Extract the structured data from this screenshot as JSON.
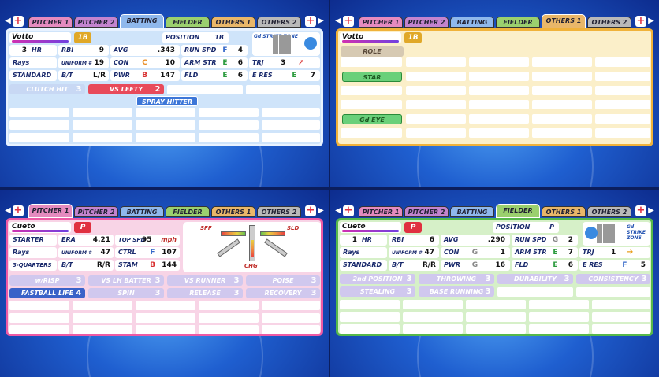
{
  "tabs": [
    "PITCHER 1",
    "PITCHER 2",
    "BATTING",
    "FIELDER",
    "OTHERS 1",
    "OTHERS 2"
  ],
  "batting": {
    "name": "Votto",
    "pos_badge": "1B",
    "position_label": "POSITION",
    "position_value": "1B",
    "hr_value": "3",
    "hr_label": "HR",
    "rbi_label": "RBI",
    "rbi_value": "9",
    "avg_label": "AVG",
    "avg_value": ".343",
    "runspd_label": "RUN SPD",
    "runspd_grade": "F",
    "runspd_value": "4",
    "team": "Rays",
    "uniform_label": "UNIFORM #",
    "uniform_value": "19",
    "con_label": "CON",
    "con_grade": "C",
    "con_value": "10",
    "armstr_label": "ARM STR",
    "armstr_grade": "E",
    "armstr_value": "6",
    "trj_label": "TRJ",
    "trj_value": "3",
    "stance": "STANDARD",
    "bt_label": "B/T",
    "bt_value": "L/R",
    "pwr_label": "PWR",
    "pwr_grade": "B",
    "pwr_value": "147",
    "fld_label": "FLD",
    "fld_grade": "E",
    "fld_value": "6",
    "eres_label": "E RES",
    "eres_grade": "E",
    "eres_value": "7",
    "zone_label": "Gd STRIKE ZONE",
    "skills": [
      {
        "label": "CLUTCH HIT",
        "level": "3"
      },
      {
        "label": "VS LEFTY",
        "level": "2"
      },
      {
        "label": "SPRAY HITTER",
        "level": ""
      }
    ]
  },
  "others1": {
    "name": "Votto",
    "pos_badge": "1B",
    "role_label": "ROLE",
    "abilities": [
      "STAR",
      "Gd EYE"
    ]
  },
  "pitcher1": {
    "name": "Cueto",
    "pos_badge": "P",
    "role": "STARTER",
    "era_label": "ERA",
    "era_value": "4.21",
    "topspd_label": "TOP SPD",
    "topspd_value": "95",
    "topspd_unit": "mph",
    "team": "Rays",
    "uniform_label": "UNIFORM #",
    "uniform_value": "47",
    "ctrl_label": "CTRL",
    "ctrl_grade": "F",
    "ctrl_value": "107",
    "arm_slot": "3-QUARTERS",
    "bt_label": "B/T",
    "bt_value": "R/R",
    "stam_label": "STAM",
    "stam_grade": "B",
    "stam_value": "144",
    "pitches": {
      "top_left": "SFF",
      "top_right": "SLD",
      "bottom": "CHG"
    },
    "skills": [
      {
        "label": "w/RISP",
        "level": "3"
      },
      {
        "label": "VS LH BATTER",
        "level": "3"
      },
      {
        "label": "VS RUNNER",
        "level": "3"
      },
      {
        "label": "POISE",
        "level": "3"
      },
      {
        "label": "FASTBALL LIFE",
        "level": "4"
      },
      {
        "label": "SPIN",
        "level": "3"
      },
      {
        "label": "RELEASE",
        "level": "3"
      },
      {
        "label": "RECOVERY",
        "level": "3"
      }
    ]
  },
  "fielder": {
    "name": "Cueto",
    "pos_badge": "P",
    "position_label": "POSITION",
    "position_value": "P",
    "hr_value": "1",
    "hr_label": "HR",
    "rbi_label": "RBI",
    "rbi_value": "6",
    "avg_label": "AVG",
    "avg_value": ".290",
    "runspd_label": "RUN SPD",
    "runspd_grade": "G",
    "runspd_value": "2",
    "team": "Rays",
    "uniform_label": "UNIFORM #",
    "uniform_value": "47",
    "con_label": "CON",
    "con_grade": "G",
    "con_value": "1",
    "armstr_label": "ARM STR",
    "armstr_grade": "E",
    "armstr_value": "7",
    "trj_label": "TRJ",
    "trj_value": "1",
    "stance": "STANDARD",
    "bt_label": "B/T",
    "bt_value": "R/R",
    "pwr_label": "PWR",
    "pwr_grade": "G",
    "pwr_value": "16",
    "fld_label": "FLD",
    "fld_grade": "E",
    "fld_value": "6",
    "eres_label": "E RES",
    "eres_grade": "F",
    "eres_value": "5",
    "zone_label": "Gd STRIKE ZONE",
    "skills": [
      {
        "label": "2nd POSITION",
        "level": "3"
      },
      {
        "label": "THROWING",
        "level": "3"
      },
      {
        "label": "DURABILITY",
        "level": "3"
      },
      {
        "label": "CONSISTENCY",
        "level": "3"
      },
      {
        "label": "STEALING",
        "level": "3"
      },
      {
        "label": "BASE RUNNING",
        "level": "3"
      }
    ]
  }
}
